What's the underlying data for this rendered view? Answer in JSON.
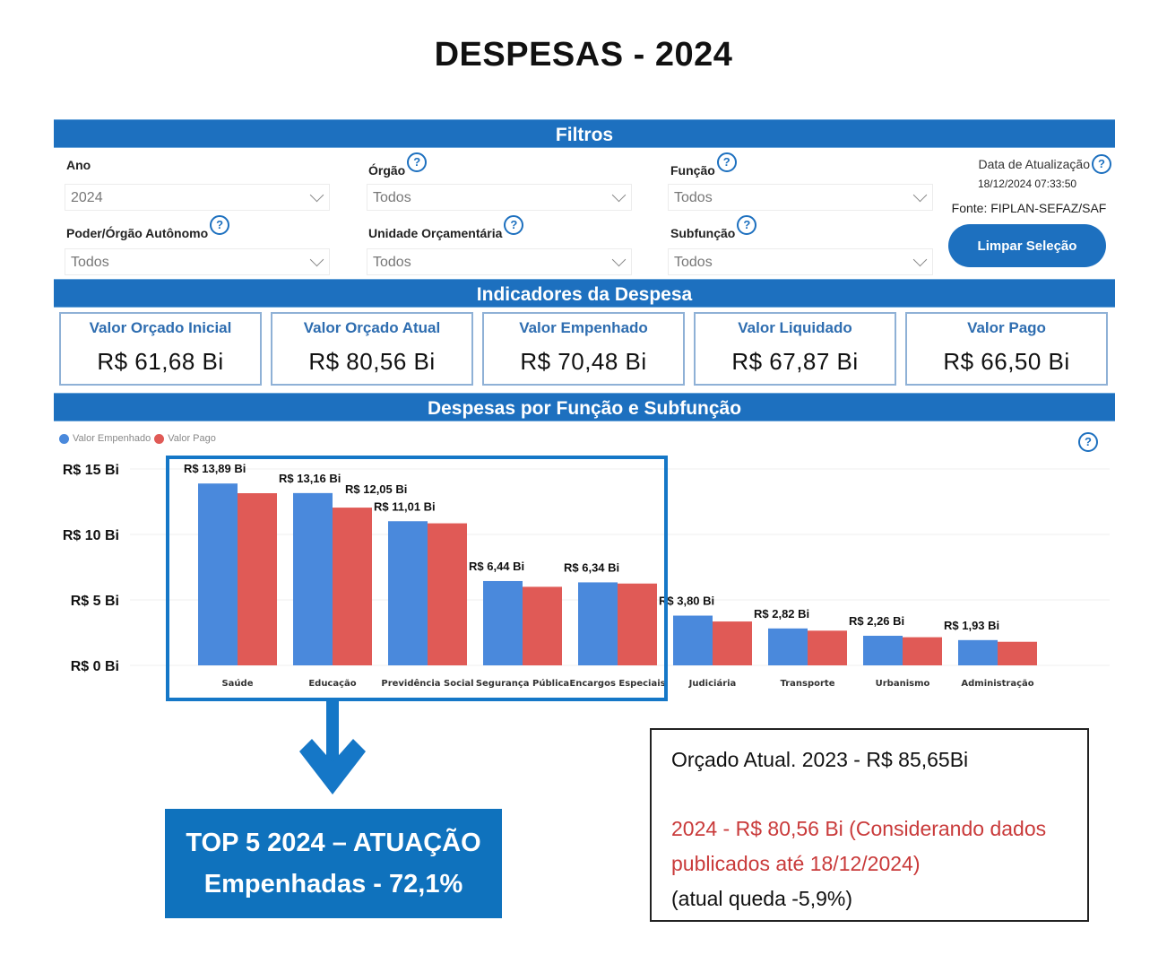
{
  "page": {
    "title": "DESPESAS - 2024"
  },
  "sections": {
    "filters": "Filtros",
    "indicators": "Indicadores da Despesa",
    "by_function": "Despesas por Função e Subfunção"
  },
  "filters": [
    {
      "label": "Ano",
      "value": "2024",
      "help": false
    },
    {
      "label": "Órgão",
      "value": "Todos",
      "help": true
    },
    {
      "label": "Função",
      "value": "Todos",
      "help": true
    },
    {
      "label": "Poder/Órgão Autônomo",
      "value": "Todos",
      "help": true
    },
    {
      "label": "Unidade Orçamentária",
      "value": "Todos",
      "help": true
    },
    {
      "label": "Subfunção",
      "value": "Todos",
      "help": true
    }
  ],
  "update": {
    "label": "Data de Atualização",
    "date": "18/12/2024 07:33:50",
    "source": "Fonte: FIPLAN-SEFAZ/SAF",
    "clear_button": "Limpar Seleção"
  },
  "kpis": [
    {
      "title": "Valor Orçado Inicial",
      "value": "R$ 61,68 Bi"
    },
    {
      "title": "Valor Orçado Atual",
      "value": "R$ 80,56 Bi"
    },
    {
      "title": "Valor Empenhado",
      "value": "R$ 70,48 Bi"
    },
    {
      "title": "Valor Liquidado",
      "value": "R$ 67,87 Bi"
    },
    {
      "title": "Valor Pago",
      "value": "R$ 66,50 Bi"
    }
  ],
  "help_glyph": "?",
  "chart_data": {
    "type": "bar",
    "title": "Despesas por Função e Subfunção",
    "xlabel": "",
    "ylabel": "",
    "ylim": [
      0,
      15
    ],
    "yticks": [
      0,
      5,
      10,
      15
    ],
    "ytick_labels": [
      "R$ 0 Bi",
      "R$ 5 Bi",
      "R$ 10 Bi",
      "R$ 15 Bi"
    ],
    "grid": true,
    "legend_position": "top-left",
    "categories": [
      "Saúde",
      "Educação",
      "Previdência Social",
      "Segurança Pública",
      "Encargos Especiais",
      "Judiciária",
      "Transporte",
      "Urbanismo",
      "Administração"
    ],
    "series": [
      {
        "name": "Valor Empenhado",
        "color": "#4a89dc",
        "values": [
          13.89,
          13.16,
          11.01,
          6.44,
          6.34,
          3.8,
          2.82,
          2.26,
          1.93
        ]
      },
      {
        "name": "Valor Pago",
        "color": "#e05a56",
        "values": [
          13.15,
          12.05,
          10.85,
          6.0,
          6.25,
          3.35,
          2.65,
          2.15,
          1.8
        ]
      }
    ],
    "data_labels": [
      {
        "category": "Saúde",
        "series": "Valor Empenhado",
        "text": "R$ 13,89 Bi"
      },
      {
        "category": "Educação",
        "series": "Valor Empenhado",
        "text": "R$ 13,16 Bi"
      },
      {
        "category": "Educação",
        "series": "Valor Pago",
        "text": "R$ 12,05 Bi"
      },
      {
        "category": "Previdência Social",
        "series": "Valor Empenhado",
        "text": "R$ 11,01 Bi"
      },
      {
        "category": "Segurança Pública",
        "series": "Valor Empenhado",
        "text": "R$ 6,44 Bi"
      },
      {
        "category": "Encargos Especiais",
        "series": "Valor Empenhado",
        "text": "R$ 6,34 Bi"
      },
      {
        "category": "Judiciária",
        "series": "Valor Empenhado",
        "text": "R$ 3,80 Bi"
      },
      {
        "category": "Transporte",
        "series": "Valor Empenhado",
        "text": "R$ 2,82 Bi"
      },
      {
        "category": "Urbanismo",
        "series": "Valor Empenhado",
        "text": "R$ 2,26 Bi"
      },
      {
        "category": "Administração",
        "series": "Valor Empenhado",
        "text": "R$ 1,93 Bi"
      }
    ],
    "highlight": {
      "categories": [
        "Saúde",
        "Educação",
        "Previdência Social",
        "Segurança Pública",
        "Encargos Especiais"
      ]
    }
  },
  "callout": {
    "line1": "TOP 5 2024 –  ATUAÇÃO",
    "line2": "Empenhadas - 72,1%"
  },
  "note": {
    "line1": "Orçado Atual. 2023 - R$ 85,65Bi",
    "line2": "2024 - R$ 80,56 Bi (Considerando dados publicados até 18/12/2024)",
    "line3": "(atual queda -5,9%)"
  }
}
